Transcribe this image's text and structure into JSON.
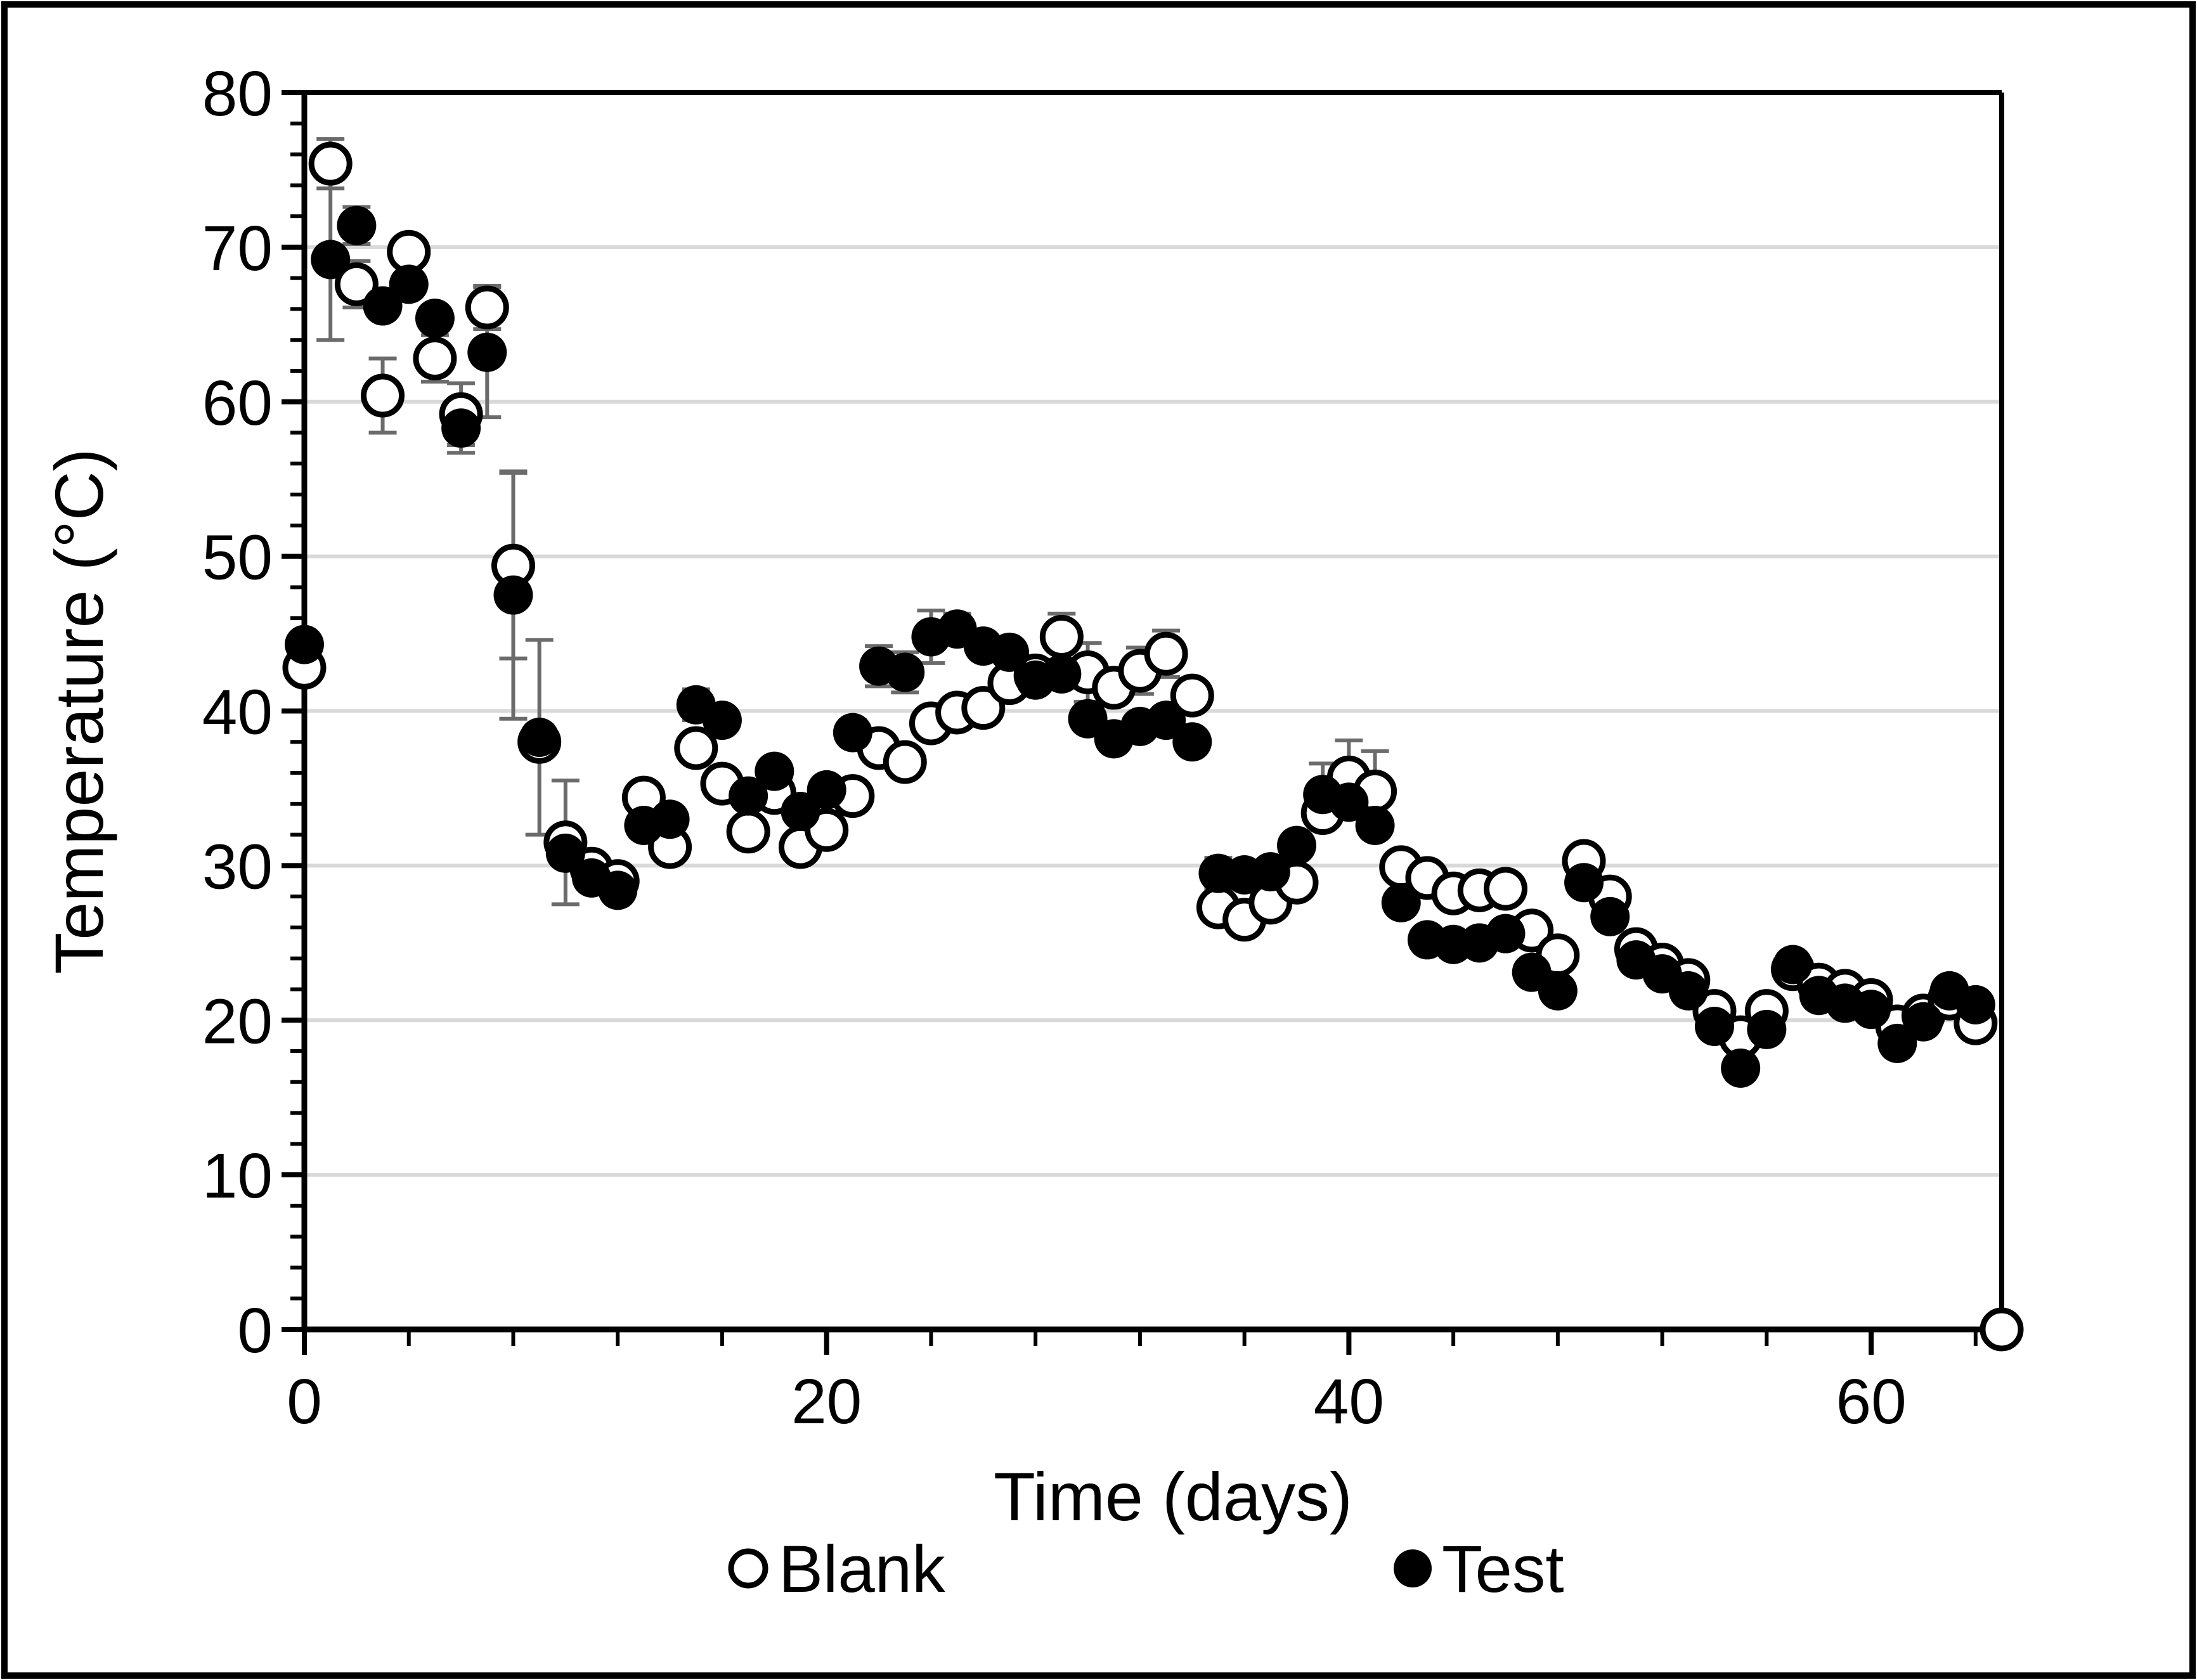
{
  "chart_data": {
    "type": "scatter",
    "title": "",
    "xlabel": "Time (days)",
    "ylabel": "Temperature (°C)",
    "xlim": [
      0,
      65
    ],
    "ylim": [
      0,
      80
    ],
    "x_major_ticks": [
      0,
      20,
      40,
      60
    ],
    "x_minor_step": 4,
    "y_major_step": 10,
    "y_minor_step": 2,
    "grid": "horizontal major gridlines only",
    "legend_position": "bottom-center",
    "colors": {
      "marker_fill_test": "#000000",
      "marker_fill_blank": "#ffffff",
      "marker_stroke": "#000000",
      "gridline": "#d9d9d9",
      "error_bar": "#6b6b6b",
      "frame": "#000000",
      "background": "#ffffff"
    },
    "series": [
      {
        "name": "Blank",
        "marker": "open-circle",
        "points": [
          [
            0,
            42.8,
            0
          ],
          [
            1,
            75.4,
            1.6
          ],
          [
            2,
            67.6,
            1.5
          ],
          [
            3,
            60.4,
            2.4
          ],
          [
            4,
            69.7,
            0
          ],
          [
            5,
            62.8,
            1.5
          ],
          [
            6,
            59.2,
            2.0
          ],
          [
            7,
            66.1,
            1.4
          ],
          [
            8,
            49.4,
            6.0
          ],
          [
            9,
            38.0,
            0
          ],
          [
            10,
            31.5,
            4.0
          ],
          [
            11,
            29.8,
            0
          ],
          [
            12,
            29.0,
            0
          ],
          [
            13,
            34.4,
            0
          ],
          [
            14,
            31.2,
            0
          ],
          [
            15,
            37.6,
            0
          ],
          [
            16,
            35.3,
            0
          ],
          [
            17,
            32.2,
            0
          ],
          [
            18,
            34.7,
            0
          ],
          [
            19,
            31.2,
            0
          ],
          [
            20,
            32.3,
            0
          ],
          [
            21,
            34.5,
            0
          ],
          [
            22,
            37.6,
            0.9
          ],
          [
            23,
            36.7,
            0
          ],
          [
            24,
            39.2,
            0
          ],
          [
            25,
            39.9,
            0
          ],
          [
            26,
            40.2,
            0
          ],
          [
            27,
            41.8,
            0
          ],
          [
            28,
            42.3,
            0
          ],
          [
            29,
            44.8,
            1.5
          ],
          [
            30,
            42.5,
            1.9
          ],
          [
            31,
            41.5,
            0
          ],
          [
            32,
            42.6,
            1.5
          ],
          [
            33,
            43.7,
            1.5
          ],
          [
            34,
            41.0,
            0
          ],
          [
            35,
            27.3,
            0
          ],
          [
            36,
            26.5,
            0
          ],
          [
            37,
            27.6,
            0
          ],
          [
            38,
            28.9,
            0
          ],
          [
            39,
            33.4,
            0
          ],
          [
            40,
            35.7,
            2.4
          ],
          [
            41,
            34.8,
            2.6
          ],
          [
            42,
            29.9,
            0
          ],
          [
            43,
            29.2,
            0
          ],
          [
            44,
            28.2,
            0.8
          ],
          [
            45,
            28.4,
            0
          ],
          [
            46,
            28.5,
            0
          ],
          [
            47,
            25.8,
            0
          ],
          [
            48,
            24.2,
            0
          ],
          [
            49,
            30.3,
            0
          ],
          [
            50,
            28.0,
            0
          ],
          [
            51,
            24.6,
            0
          ],
          [
            52,
            23.6,
            0
          ],
          [
            53,
            22.6,
            0
          ],
          [
            54,
            20.6,
            0
          ],
          [
            55,
            18.9,
            0
          ],
          [
            56,
            20.6,
            0
          ],
          [
            57,
            23.3,
            0
          ],
          [
            58,
            22.3,
            0.5
          ],
          [
            59,
            21.9,
            0
          ],
          [
            60,
            21.3,
            0
          ],
          [
            61,
            19.6,
            0
          ],
          [
            62,
            20.3,
            0
          ],
          [
            63,
            21.4,
            0
          ],
          [
            64,
            19.8,
            0
          ],
          [
            65,
            0.0,
            0
          ]
        ]
      },
      {
        "name": "Test",
        "marker": "filled-circle",
        "points": [
          [
            0,
            44.3,
            0
          ],
          [
            1,
            69.2,
            5.2
          ],
          [
            2,
            71.4,
            1.2
          ],
          [
            3,
            66.2,
            0
          ],
          [
            4,
            67.6,
            0
          ],
          [
            5,
            65.4,
            0
          ],
          [
            6,
            58.3,
            1.6
          ],
          [
            7,
            63.2,
            4.2
          ],
          [
            8,
            47.5,
            8.0
          ],
          [
            9,
            38.3,
            6.3
          ],
          [
            10,
            30.8,
            0
          ],
          [
            11,
            29.2,
            0
          ],
          [
            12,
            28.4,
            0
          ],
          [
            13,
            32.6,
            0
          ],
          [
            14,
            33.0,
            0
          ],
          [
            15,
            40.4,
            1.0
          ],
          [
            16,
            39.4,
            0
          ],
          [
            17,
            34.5,
            0
          ],
          [
            18,
            36.1,
            0
          ],
          [
            19,
            33.5,
            0
          ],
          [
            20,
            34.9,
            0.8
          ],
          [
            21,
            38.6,
            0.8
          ],
          [
            22,
            42.9,
            1.3
          ],
          [
            23,
            42.5,
            1.3
          ],
          [
            24,
            44.8,
            1.7
          ],
          [
            25,
            45.3,
            1.0
          ],
          [
            26,
            44.2,
            0
          ],
          [
            27,
            43.8,
            0
          ],
          [
            28,
            42.0,
            0
          ],
          [
            29,
            42.4,
            0
          ],
          [
            30,
            39.5,
            0
          ],
          [
            31,
            38.2,
            0
          ],
          [
            32,
            39.0,
            0
          ],
          [
            33,
            39.4,
            0
          ],
          [
            34,
            38.0,
            0
          ],
          [
            35,
            29.5,
            1.0
          ],
          [
            36,
            29.4,
            0
          ],
          [
            37,
            29.6,
            0
          ],
          [
            38,
            31.3,
            0
          ],
          [
            39,
            34.6,
            2.0
          ],
          [
            40,
            34.1,
            0
          ],
          [
            41,
            32.6,
            0
          ],
          [
            42,
            27.6,
            0
          ],
          [
            43,
            25.2,
            0
          ],
          [
            44,
            24.9,
            0.8
          ],
          [
            45,
            25.0,
            0
          ],
          [
            46,
            25.6,
            0.8
          ],
          [
            47,
            23.1,
            0
          ],
          [
            48,
            21.9,
            0
          ],
          [
            49,
            28.9,
            0.7
          ],
          [
            50,
            26.7,
            0
          ],
          [
            51,
            23.9,
            0
          ],
          [
            52,
            23.0,
            0
          ],
          [
            53,
            21.9,
            0
          ],
          [
            54,
            19.6,
            0
          ],
          [
            55,
            16.9,
            0
          ],
          [
            56,
            19.4,
            0
          ],
          [
            57,
            23.6,
            0
          ],
          [
            58,
            21.6,
            0.5
          ],
          [
            59,
            21.1,
            0.5
          ],
          [
            60,
            20.7,
            0
          ],
          [
            61,
            18.5,
            0
          ],
          [
            62,
            19.9,
            0
          ],
          [
            63,
            21.9,
            0
          ],
          [
            64,
            21.0,
            0
          ]
        ]
      }
    ]
  }
}
